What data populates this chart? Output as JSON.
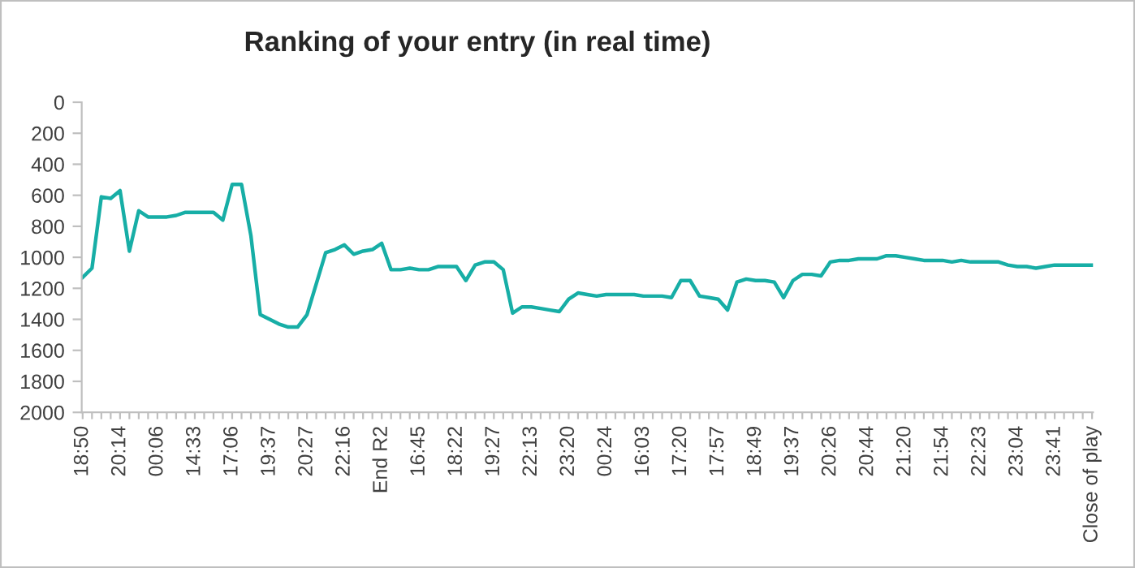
{
  "chart_data": {
    "type": "line",
    "title": "Ranking of your entry (in real time)",
    "categories": [
      "18:50",
      null,
      null,
      null,
      "20:14",
      null,
      null,
      null,
      "00:06",
      null,
      null,
      null,
      "14:33",
      null,
      null,
      null,
      "17:06",
      null,
      null,
      null,
      "19:37",
      null,
      null,
      null,
      "20:27",
      null,
      null,
      null,
      "22:16",
      null,
      null,
      null,
      "End R2",
      null,
      null,
      null,
      "16:45",
      null,
      null,
      null,
      "18:22",
      null,
      null,
      null,
      "19:27",
      null,
      null,
      null,
      "22:13",
      null,
      null,
      null,
      "23:20",
      null,
      null,
      null,
      "00:24",
      null,
      null,
      null,
      "16:03",
      null,
      null,
      null,
      "17:20",
      null,
      null,
      null,
      "17:57",
      null,
      null,
      null,
      "18:49",
      null,
      null,
      null,
      "19:37",
      null,
      null,
      null,
      "20:26",
      null,
      null,
      null,
      "20:44",
      null,
      null,
      null,
      "21:20",
      null,
      null,
      null,
      "21:54",
      null,
      null,
      null,
      "22:23",
      null,
      null,
      null,
      "23:04",
      null,
      null,
      null,
      "23:41",
      null,
      null,
      null,
      "Close of play"
    ],
    "series": [
      {
        "color": "#17aea6",
        "values": [
          1130,
          1070,
          610,
          620,
          570,
          960,
          700,
          740,
          740,
          740,
          730,
          710,
          710,
          710,
          710,
          760,
          530,
          530,
          860,
          1370,
          1400,
          1430,
          1450,
          1450,
          1370,
          1170,
          970,
          950,
          920,
          980,
          960,
          950,
          910,
          1080,
          1080,
          1070,
          1080,
          1080,
          1060,
          1060,
          1060,
          1150,
          1050,
          1030,
          1030,
          1080,
          1360,
          1320,
          1320,
          1330,
          1340,
          1350,
          1270,
          1230,
          1240,
          1250,
          1240,
          1240,
          1240,
          1240,
          1250,
          1250,
          1250,
          1260,
          1150,
          1150,
          1250,
          1260,
          1270,
          1340,
          1160,
          1140,
          1150,
          1150,
          1160,
          1260,
          1150,
          1110,
          1110,
          1120,
          1030,
          1020,
          1020,
          1010,
          1010,
          1010,
          990,
          990,
          1000,
          1010,
          1020,
          1020,
          1020,
          1030,
          1020,
          1030,
          1030,
          1030,
          1030,
          1050,
          1060,
          1060,
          1070,
          1060,
          1050,
          1050,
          1050,
          1050,
          1050
        ]
      }
    ],
    "ylim": [
      2000,
      0
    ],
    "yticks": [
      0,
      200,
      400,
      600,
      800,
      1000,
      1200,
      1400,
      1600,
      1800,
      2000
    ],
    "grid": false,
    "marker": "none",
    "line_style": "solid"
  }
}
